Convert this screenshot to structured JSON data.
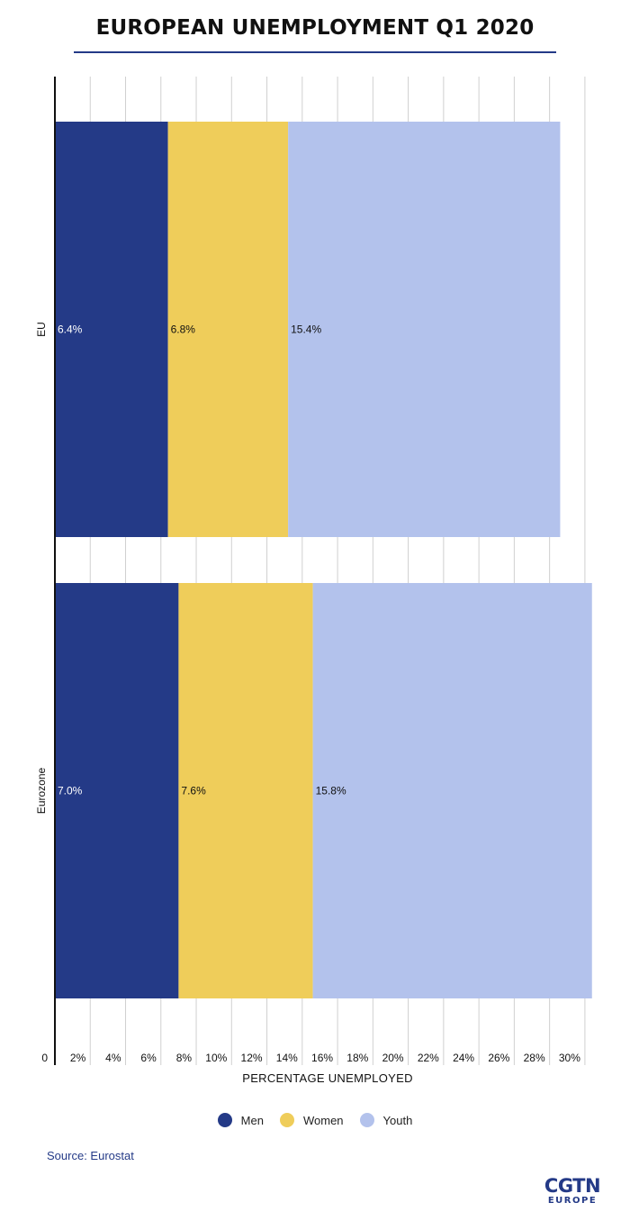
{
  "title": "EUROPEAN UNEMPLOYMENT Q1 2020",
  "source": "Source: Eurostat",
  "logo": {
    "main": "CGTN",
    "sub": "EUROPE"
  },
  "colors": {
    "men": "#243a87",
    "women": "#efcd5a",
    "youth": "#b3c2ec",
    "accent": "#243a87",
    "grid": "#d0d0d0"
  },
  "legend": [
    {
      "label": "Men",
      "color": "#243a87"
    },
    {
      "label": "Women",
      "color": "#efcd5a"
    },
    {
      "label": "Youth",
      "color": "#b3c2ec"
    }
  ],
  "chart_data": {
    "type": "bar",
    "orientation": "horizontal",
    "stacked": true,
    "categories": [
      "EU",
      "Eurozone"
    ],
    "series": [
      {
        "name": "Men",
        "values": [
          6.4,
          7.0
        ],
        "labels": [
          "6.4%",
          "7.0%"
        ],
        "color": "#243a87",
        "label_color": "#ffffff"
      },
      {
        "name": "Women",
        "values": [
          6.8,
          7.6
        ],
        "labels": [
          "6.8%",
          "7.6%"
        ],
        "color": "#efcd5a",
        "label_color": "#111111"
      },
      {
        "name": "Youth",
        "values": [
          15.4,
          15.8
        ],
        "labels": [
          "15.4%",
          "15.8%"
        ],
        "color": "#b3c2ec",
        "label_color": "#111111"
      }
    ],
    "xlabel": "PERCENTAGE UNEMPLOYED",
    "ylabel": "",
    "xlim": [
      0,
      30
    ],
    "xticks": [
      0,
      2,
      4,
      6,
      8,
      10,
      12,
      14,
      16,
      18,
      20,
      22,
      24,
      26,
      28,
      30
    ],
    "xtick_labels": [
      "0",
      "2%",
      "4%",
      "6%",
      "8%",
      "10%",
      "12%",
      "14%",
      "16%",
      "18%",
      "20%",
      "22%",
      "24%",
      "26%",
      "28%",
      "30%"
    ],
    "grid": true,
    "legend_position": "bottom"
  }
}
